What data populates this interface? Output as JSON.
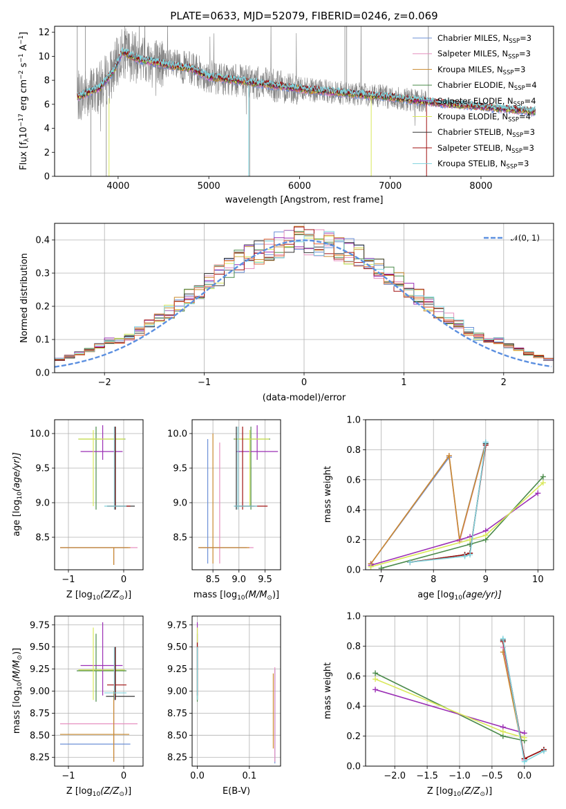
{
  "colors": {
    "Chabrier MILES": "#6b8fd6",
    "Salpeter MILES": "#e68fbf",
    "Kroupa MILES": "#c98a2e",
    "Chabrier ELODIE": "#4a8a4a",
    "Salpeter ELODIE": "#9b2fb5",
    "Kroupa ELODIE": "#d9e85a",
    "Chabrier STELIB": "#333333",
    "Salpeter STELIB": "#a01010",
    "Kroupa STELIB": "#7fd3dd",
    "data": "#808080",
    "gauss": "#5b8fe0",
    "hist_extra": "#e0673a"
  },
  "chart_data": [
    {
      "id": "spectrum",
      "type": "line",
      "title": "PLATE=0633, MJD=52079, FIBERID=0246, z=0.069",
      "xlabel": "wavelength [Angstrom, rest frame]",
      "ylabel_main": "Flux [f",
      "ylabel_sub": "λ",
      "ylabel_rest": "10",
      "ylabel_exp": "−17",
      "ylabel_tail": " erg cm",
      "ylabel_exp2": "−2",
      "ylabel_tail2": " s",
      "ylabel_exp3": "−1",
      "ylabel_tail3": " A",
      "ylabel_exp4": "−1",
      "ylabel_end": "]",
      "xlim": [
        3300,
        8800
      ],
      "ylim": [
        0,
        12.5
      ],
      "xticks": [
        4000,
        5000,
        6000,
        7000,
        8000
      ],
      "yticks": [
        0,
        2,
        4,
        6,
        8,
        10,
        12
      ],
      "legend_position": "top-right",
      "legend": [
        {
          "name": "Chabrier MILES",
          "n": "3"
        },
        {
          "name": "Salpeter MILES",
          "n": "3"
        },
        {
          "name": "Kroupa MILES",
          "n": "3"
        },
        {
          "name": "Chabrier ELODIE",
          "n": "4"
        },
        {
          "name": "Salpeter ELODIE",
          "n": "4"
        },
        {
          "name": "Kroupa ELODIE",
          "n": "4"
        },
        {
          "name": "Chabrier STELIB",
          "n": "3"
        },
        {
          "name": "Salpeter STELIB",
          "n": "3"
        },
        {
          "name": "Kroupa STELIB",
          "n": "3"
        }
      ],
      "legend_nsub": "SSP",
      "continuum": {
        "x": [
          3550,
          3650,
          3800,
          3950,
          4050,
          4200,
          4400,
          4600,
          4800,
          5000,
          5200,
          5500,
          5800,
          6100,
          6400,
          6700,
          7000,
          7200,
          7400,
          7700,
          8000,
          8300,
          8600
        ],
        "y": [
          6.6,
          6.9,
          7.4,
          8.8,
          10.4,
          9.8,
          9.5,
          9.2,
          9.0,
          8.3,
          8.1,
          7.8,
          7.5,
          7.2,
          7.0,
          6.8,
          6.6,
          6.4,
          6.2,
          6.0,
          5.8,
          5.6,
          5.4
        ]
      }
    },
    {
      "id": "residual-hist",
      "type": "line",
      "xlabel": "(data-model)/error",
      "ylabel": "Normed distribution",
      "xlim": [
        -2.5,
        2.5
      ],
      "ylim": [
        0,
        0.45
      ],
      "xticks": [
        -2,
        -1,
        0,
        1,
        2
      ],
      "yticks": [
        0.0,
        0.1,
        0.2,
        0.3,
        0.4
      ],
      "grid": true,
      "legend_position": "top-right",
      "gauss_label": "𝒩(0, 1)",
      "bin_width": 0.1
    },
    {
      "id": "age-vs-Z",
      "type": "scatter",
      "xlabel": "Z [log",
      "xlabel_sub": "10",
      "xlabel_rest": "(Z/Z",
      "xlabel_sub2": "⊙",
      "xlabel_end": ")]",
      "ylabel": "age  [log",
      "ylabel_sub": "10",
      "ylabel_rest": "(age/yr)]",
      "xlim": [
        -1.25,
        0.35
      ],
      "ylim": [
        8.03,
        10.2
      ],
      "xticks": [
        -1,
        0
      ],
      "yticks": [
        8.5,
        9.0,
        9.5,
        10.0
      ],
      "grid": true,
      "crosses": [
        {
          "c": "Chabrier MILES",
          "x": -0.18,
          "y": 8.35,
          "xe": [
            -1.15,
            0.08
          ],
          "ye": [
            8.1,
            8.35
          ]
        },
        {
          "c": "Salpeter MILES",
          "x": -0.18,
          "y": 8.35,
          "xe": [
            -1.15,
            0.25
          ],
          "ye": [
            8.1,
            8.35
          ]
        },
        {
          "c": "Kroupa MILES",
          "x": -0.18,
          "y": 8.35,
          "xe": [
            -1.15,
            0.12
          ],
          "ye": [
            8.1,
            8.35
          ]
        },
        {
          "c": "Chabrier ELODIE",
          "x": -0.5,
          "y": 9.92,
          "xe": [
            -0.82,
            0.03
          ],
          "ye": [
            8.9,
            10.1
          ]
        },
        {
          "c": "Salpeter ELODIE",
          "x": -0.38,
          "y": 9.74,
          "xe": [
            -0.78,
            -0.02
          ],
          "ye": [
            9.62,
            10.12
          ]
        },
        {
          "c": "Kroupa ELODIE",
          "x": -0.55,
          "y": 9.92,
          "xe": [
            -0.82,
            0.02
          ],
          "ye": [
            8.95,
            10.05
          ]
        },
        {
          "c": "Chabrier STELIB",
          "x": -0.15,
          "y": 8.95,
          "xe": [
            -0.3,
            0.2
          ],
          "ye": [
            8.9,
            10.1
          ]
        },
        {
          "c": "Salpeter STELIB",
          "x": -0.16,
          "y": 8.95,
          "xe": [
            -0.3,
            0.12
          ],
          "ye": [
            8.9,
            10.1
          ]
        },
        {
          "c": "Kroupa STELIB",
          "x": -0.17,
          "y": 8.95,
          "xe": [
            -0.35,
            0.05
          ],
          "ye": [
            8.9,
            10.1
          ]
        }
      ]
    },
    {
      "id": "age-vs-mass",
      "type": "scatter",
      "xlabel": "mass [log",
      "xlabel_sub": "10",
      "xlabel_rest": "(M/M",
      "xlabel_sub2": "⊙",
      "xlabel_end": ")]",
      "xlim": [
        8.1,
        9.8
      ],
      "ylim": [
        8.03,
        10.2
      ],
      "xticks": [
        8.5,
        9.0,
        9.5
      ],
      "xticklabels": [
        "8.5",
        "9.0",
        "9.5"
      ],
      "yticks": [
        8.5,
        9.0,
        9.5,
        10.0
      ],
      "grid": true,
      "crosses": [
        {
          "c": "Chabrier MILES",
          "x": 8.4,
          "y": 8.35,
          "xe": [
            8.22,
            9.15
          ],
          "ye": [
            8.12,
            9.92
          ]
        },
        {
          "c": "Salpeter MILES",
          "x": 8.63,
          "y": 8.35,
          "xe": [
            8.22,
            9.28
          ],
          "ye": [
            8.12,
            9.87
          ]
        },
        {
          "c": "Kroupa MILES",
          "x": 8.5,
          "y": 8.35,
          "xe": [
            8.22,
            9.2
          ],
          "ye": [
            8.12,
            10.0
          ]
        },
        {
          "c": "Chabrier ELODIE",
          "x": 9.23,
          "y": 9.92,
          "xe": [
            8.9,
            9.6
          ],
          "ye": [
            8.9,
            10.1
          ]
        },
        {
          "c": "Salpeter ELODIE",
          "x": 9.35,
          "y": 9.74,
          "xe": [
            8.95,
            9.75
          ],
          "ye": [
            9.62,
            10.12
          ]
        },
        {
          "c": "Kroupa ELODIE",
          "x": 9.21,
          "y": 9.92,
          "xe": [
            8.92,
            9.58
          ],
          "ye": [
            8.95,
            10.05
          ]
        },
        {
          "c": "Chabrier STELIB",
          "x": 8.95,
          "y": 8.95,
          "xe": [
            8.92,
            9.3
          ],
          "ye": [
            8.9,
            10.1
          ]
        },
        {
          "c": "Salpeter STELIB",
          "x": 9.07,
          "y": 8.95,
          "xe": [
            8.92,
            9.55
          ],
          "ye": [
            8.9,
            10.1
          ]
        },
        {
          "c": "Kroupa STELIB",
          "x": 8.98,
          "y": 8.95,
          "xe": [
            8.9,
            9.35
          ],
          "ye": [
            8.9,
            10.1
          ]
        }
      ]
    },
    {
      "id": "weight-vs-age",
      "type": "line",
      "xlabel": "age  [log",
      "xlabel_sub": "10",
      "xlabel_rest": "(age/yr)]",
      "ylabel": "mass weight",
      "xlim": [
        6.7,
        10.3
      ],
      "ylim": [
        0,
        1
      ],
      "xticks": [
        7,
        8,
        9,
        10
      ],
      "yticks": [
        0.0,
        0.2,
        0.4,
        0.6,
        0.8,
        1.0
      ],
      "grid": true,
      "series": [
        {
          "c": "Chabrier MILES",
          "x": [
            6.8,
            8.3,
            8.5,
            9.0
          ],
          "y": [
            0.04,
            0.75,
            0.2,
            0.85
          ]
        },
        {
          "c": "Salpeter MILES",
          "x": [
            6.8,
            8.3,
            8.5,
            9.0
          ],
          "y": [
            0.04,
            0.76,
            0.19,
            0.84
          ]
        },
        {
          "c": "Kroupa MILES",
          "x": [
            6.8,
            8.3,
            8.5,
            9.0
          ],
          "y": [
            0.04,
            0.76,
            0.2,
            0.84
          ]
        },
        {
          "c": "Chabrier ELODIE",
          "x": [
            7.0,
            8.7,
            9.0,
            10.1
          ],
          "y": [
            0.01,
            0.17,
            0.2,
            0.62
          ]
        },
        {
          "c": "Salpeter ELODIE",
          "x": [
            6.8,
            8.7,
            9.0,
            10.0
          ],
          "y": [
            0.03,
            0.22,
            0.26,
            0.51
          ]
        },
        {
          "c": "Kroupa ELODIE",
          "x": [
            6.8,
            8.7,
            9.0,
            10.1
          ],
          "y": [
            0.02,
            0.2,
            0.23,
            0.58
          ]
        },
        {
          "c": "Chabrier STELIB",
          "x": [
            7.55,
            8.6,
            8.7,
            9.0
          ],
          "y": [
            0.05,
            0.1,
            0.11,
            0.84
          ]
        },
        {
          "c": "Salpeter STELIB",
          "x": [
            7.55,
            8.6,
            8.7,
            9.0
          ],
          "y": [
            0.05,
            0.1,
            0.11,
            0.83
          ]
        },
        {
          "c": "Kroupa STELIB",
          "x": [
            7.55,
            8.6,
            8.7,
            9.0
          ],
          "y": [
            0.05,
            0.09,
            0.1,
            0.85
          ]
        }
      ]
    },
    {
      "id": "mass-vs-Z",
      "type": "scatter",
      "xlabel": "Z [log",
      "xlabel_sub": "10",
      "xlabel_rest": "(Z/Z",
      "xlabel_sub2": "⊙",
      "xlabel_end": ")]",
      "ylabel": "mass [log",
      "ylabel_sub": "10",
      "ylabel_rest": "(M/M",
      "ylabel_sub2": "⊙",
      "ylabel_end": ")]",
      "xlim": [
        -1.25,
        0.35
      ],
      "ylim": [
        8.15,
        9.85
      ],
      "xticks": [
        -1,
        0
      ],
      "yticks": [
        8.25,
        8.5,
        8.75,
        9.0,
        9.25,
        9.5,
        9.75
      ],
      "yticklabels": [
        "8.25",
        "8.50",
        "8.75",
        "9.00",
        "9.25",
        "9.50",
        "9.75"
      ],
      "grid": true,
      "crosses": [
        {
          "c": "Chabrier MILES",
          "x": -0.18,
          "y": 8.4,
          "xe": [
            -1.15,
            0.12
          ],
          "ye": [
            8.2,
            9.0
          ]
        },
        {
          "c": "Salpeter MILES",
          "x": -0.18,
          "y": 8.63,
          "xe": [
            -1.15,
            0.25
          ],
          "ye": [
            8.2,
            9.0
          ]
        },
        {
          "c": "Kroupa MILES",
          "x": -0.18,
          "y": 8.51,
          "xe": [
            -1.15,
            0.1
          ],
          "ye": [
            8.2,
            9.0
          ]
        },
        {
          "c": "Chabrier ELODIE",
          "x": -0.5,
          "y": 9.23,
          "xe": [
            -0.85,
            0.05
          ],
          "ye": [
            8.88,
            9.65
          ]
        },
        {
          "c": "Salpeter ELODIE",
          "x": -0.38,
          "y": 9.29,
          "xe": [
            -0.78,
            -0.02
          ],
          "ye": [
            8.95,
            9.78
          ]
        },
        {
          "c": "Kroupa ELODIE",
          "x": -0.55,
          "y": 9.24,
          "xe": [
            -0.82,
            0.02
          ],
          "ye": [
            8.9,
            9.72
          ]
        },
        {
          "c": "Chabrier STELIB",
          "x": -0.15,
          "y": 8.94,
          "xe": [
            -0.32,
            0.2
          ],
          "ye": [
            8.9,
            9.5
          ]
        },
        {
          "c": "Salpeter STELIB",
          "x": -0.16,
          "y": 9.07,
          "xe": [
            -0.3,
            0.05
          ],
          "ye": [
            8.9,
            9.5
          ]
        },
        {
          "c": "Kroupa STELIB",
          "x": -0.17,
          "y": 8.98,
          "xe": [
            -0.35,
            0.05
          ],
          "ye": [
            8.9,
            9.5
          ]
        }
      ]
    },
    {
      "id": "mass-vs-EBV",
      "type": "scatter",
      "xlabel": "E(B-V)",
      "xlim": [
        -0.01,
        0.16
      ],
      "ylim": [
        8.15,
        9.85
      ],
      "xticks": [
        0.0,
        0.1
      ],
      "xticklabels": [
        "0.0",
        "0.1"
      ],
      "yticks": [
        8.25,
        8.5,
        8.75,
        9.0,
        9.25,
        9.5,
        9.75
      ],
      "yticklabels": [
        "8.25",
        "8.50",
        "8.75",
        "9.00",
        "9.25",
        "9.50",
        "9.75"
      ],
      "grid": true,
      "crosses": [
        {
          "c": "Chabrier MILES",
          "x": 0.149,
          "y": 8.4,
          "xe": [
            0.149,
            0.149
          ],
          "ye": [
            8.18,
            9.25
          ]
        },
        {
          "c": "Salpeter MILES",
          "x": 0.149,
          "y": 8.63,
          "xe": [
            0.149,
            0.149
          ],
          "ye": [
            8.2,
            9.27
          ]
        },
        {
          "c": "Kroupa MILES",
          "x": 0.146,
          "y": 8.51,
          "xe": [
            0.146,
            0.146
          ],
          "ye": [
            8.35,
            9.2
          ]
        },
        {
          "c": "Chabrier ELODIE",
          "x": 0.0,
          "y": 9.23,
          "xe": [
            0.0,
            0.0
          ],
          "ye": [
            8.88,
            9.65
          ]
        },
        {
          "c": "Salpeter ELODIE",
          "x": 0.0,
          "y": 9.29,
          "xe": [
            0.0,
            0.0
          ],
          "ye": [
            8.95,
            9.78
          ]
        },
        {
          "c": "Kroupa ELODIE",
          "x": 0.0,
          "y": 9.24,
          "xe": [
            0.0,
            0.0
          ],
          "ye": [
            8.9,
            9.72
          ]
        },
        {
          "c": "Chabrier STELIB",
          "x": 0.0,
          "y": 8.94,
          "xe": [
            0.0,
            0.0
          ],
          "ye": [
            8.9,
            9.5
          ]
        },
        {
          "c": "Salpeter STELIB",
          "x": 0.0,
          "y": 9.07,
          "xe": [
            0.0,
            0.0
          ],
          "ye": [
            8.95,
            9.55
          ]
        },
        {
          "c": "Kroupa STELIB",
          "x": 0.0,
          "y": 8.98,
          "xe": [
            0.0,
            0.0
          ],
          "ye": [
            8.9,
            9.5
          ]
        }
      ]
    },
    {
      "id": "weight-vs-Z",
      "type": "line",
      "xlabel": "Z [log",
      "xlabel_sub": "10",
      "xlabel_rest": "(Z/Z",
      "xlabel_sub2": "⊙",
      "xlabel_end": ")]",
      "ylabel": "mass weight",
      "xlim": [
        -2.45,
        0.45
      ],
      "ylim": [
        0,
        1
      ],
      "xticks": [
        -2.0,
        -1.5,
        -1.0,
        -0.5,
        0.0
      ],
      "xticklabels": [
        "−2.0",
        "−1.5",
        "−1.0",
        "−0.5",
        "0.0"
      ],
      "yticks": [
        0.0,
        0.2,
        0.4,
        0.6,
        0.8,
        1.0
      ],
      "grid": true,
      "series": [
        {
          "c": "Chabrier MILES",
          "x": [
            -0.33,
            0.0
          ],
          "y": [
            0.84,
            0.04
          ]
        },
        {
          "c": "Salpeter MILES",
          "x": [
            -0.33,
            0.0
          ],
          "y": [
            0.79,
            0.04
          ]
        },
        {
          "c": "Kroupa MILES",
          "x": [
            -0.33,
            0.0
          ],
          "y": [
            0.76,
            0.05
          ]
        },
        {
          "c": "Chabrier ELODIE",
          "x": [
            -2.3,
            -0.33,
            0.0
          ],
          "y": [
            0.62,
            0.2,
            0.17
          ]
        },
        {
          "c": "Salpeter ELODIE",
          "x": [
            -2.3,
            -0.33,
            0.0
          ],
          "y": [
            0.51,
            0.26,
            0.22
          ]
        },
        {
          "c": "Kroupa ELODIE",
          "x": [
            -2.3,
            -0.33,
            0.0
          ],
          "y": [
            0.58,
            0.23,
            0.19
          ]
        },
        {
          "c": "Chabrier STELIB",
          "x": [
            -0.33,
            0.0,
            0.3
          ],
          "y": [
            0.84,
            0.05,
            0.11
          ]
        },
        {
          "c": "Salpeter STELIB",
          "x": [
            -0.33,
            0.0,
            0.3
          ],
          "y": [
            0.83,
            0.05,
            0.11
          ]
        },
        {
          "c": "Kroupa STELIB",
          "x": [
            -0.33,
            0.0,
            0.3
          ],
          "y": [
            0.85,
            0.03,
            0.1
          ]
        }
      ]
    }
  ]
}
